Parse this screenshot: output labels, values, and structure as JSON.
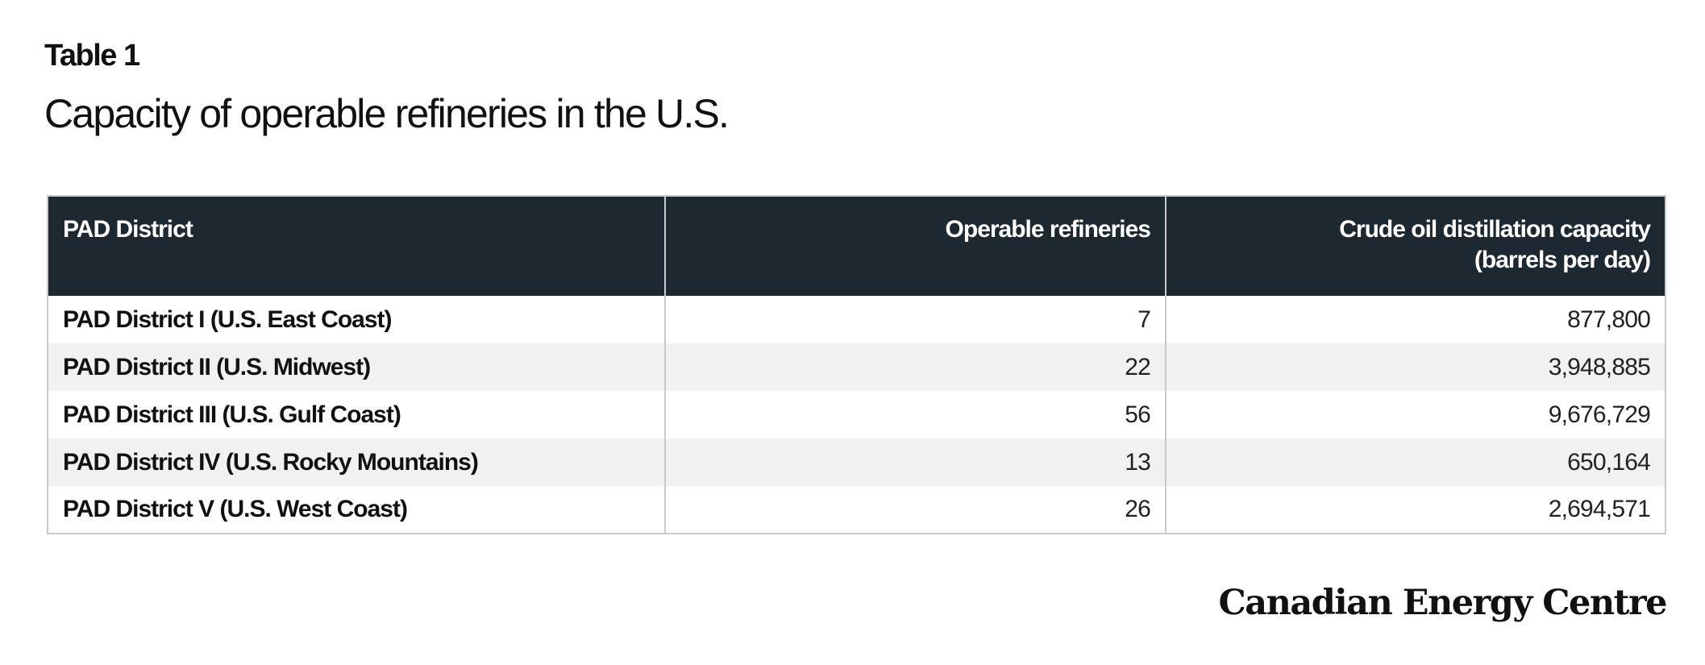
{
  "table_label": "Table 1",
  "title": "Capacity of operable refineries in the U.S.",
  "table": {
    "headers": {
      "district": "PAD District",
      "refineries": "Operable refineries",
      "capacity_line1": "Crude oil distillation capacity",
      "capacity_line2": "(barrels per  day)"
    },
    "rows": [
      {
        "district": "PAD District I (U.S. East Coast)",
        "refineries": "7",
        "capacity": "877,800"
      },
      {
        "district": "PAD District II (U.S. Midwest)",
        "refineries": "22",
        "capacity": "3,948,885"
      },
      {
        "district": "PAD District III (U.S. Gulf Coast)",
        "refineries": "56",
        "capacity": "9,676,729"
      },
      {
        "district": "PAD District IV (U.S. Rocky Mountains)",
        "refineries": "13",
        "capacity": "650,164"
      },
      {
        "district": "PAD District V (U.S. West Coast)",
        "refineries": "26",
        "capacity": "2,694,571"
      }
    ]
  },
  "brand": "Canadian Energy Centre",
  "colors": {
    "header_bg": "#1d2830",
    "header_text": "#ffffff",
    "stripe": "#f0f1f1",
    "border": "#c8cacc"
  }
}
